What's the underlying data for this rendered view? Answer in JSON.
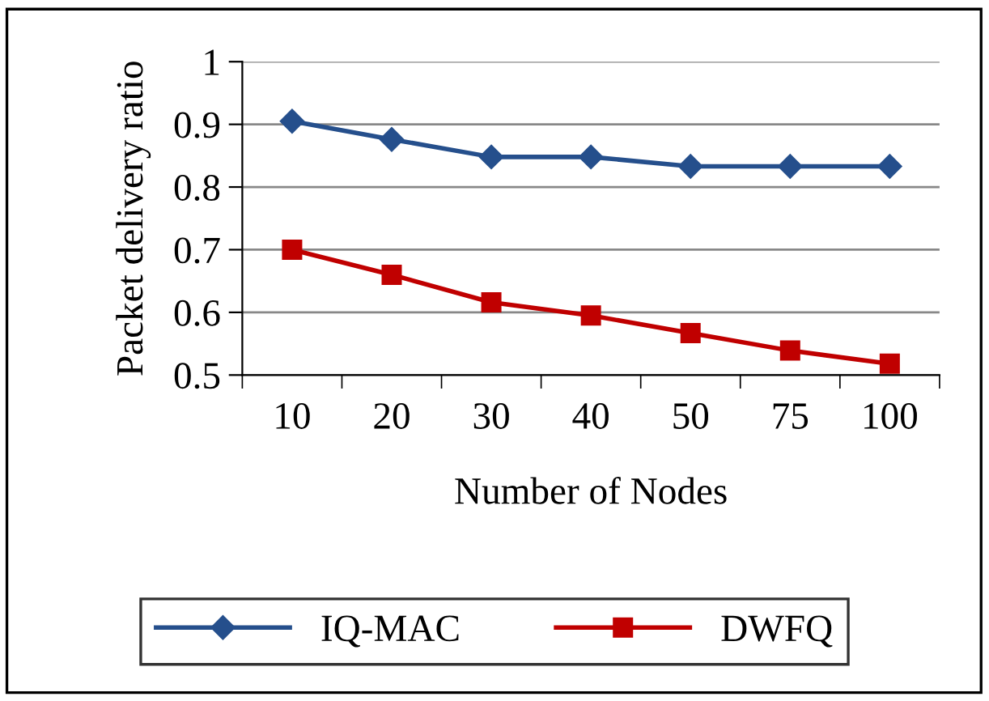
{
  "chart_data": {
    "type": "line",
    "ylabel": "Packet delivery ratio",
    "xlabel": "Number of Nodes",
    "categories": [
      "10",
      "20",
      "30",
      "40",
      "50",
      "75",
      "100"
    ],
    "series": [
      {
        "name": "IQ-MAC",
        "color": "#254f8c",
        "marker": "diamond",
        "values": [
          0.905,
          0.876,
          0.848,
          0.848,
          0.833,
          0.833,
          0.833
        ]
      },
      {
        "name": "DWFQ",
        "color": "#c00000",
        "marker": "square",
        "values": [
          0.7,
          0.66,
          0.616,
          0.595,
          0.567,
          0.539,
          0.518
        ]
      }
    ],
    "ylim": [
      0.5,
      1
    ],
    "yticks": [
      0.5,
      0.6,
      0.7,
      0.8,
      0.9,
      1
    ],
    "grid": "y",
    "legend": "bottom",
    "line_style": "solid"
  }
}
